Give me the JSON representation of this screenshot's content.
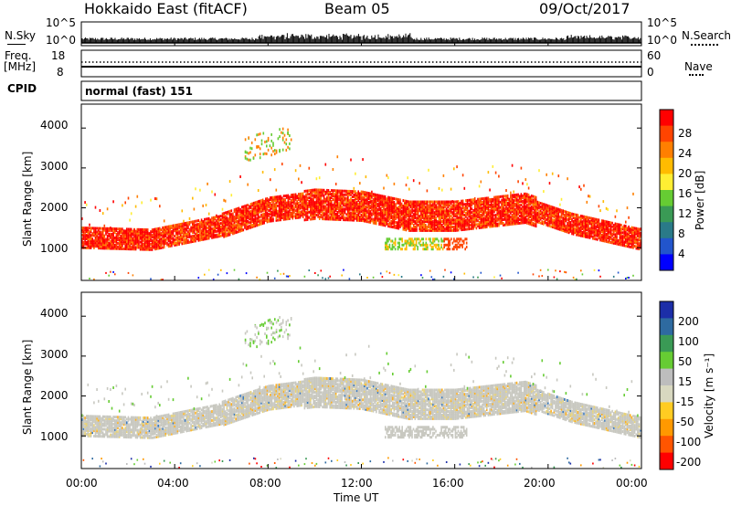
{
  "header": {
    "title": "Hokkaido East (fitACF)",
    "beam": "Beam 05",
    "date": "09/Oct/2017"
  },
  "nsky_panel": {
    "left_label": "N.Sky",
    "left_ticks": [
      "10^5",
      "10^0"
    ],
    "right_ticks": [
      "10^5",
      "10^0"
    ],
    "right_label": "N.Search"
  },
  "freq_panel": {
    "label_top": "Freq.",
    "label_unit": "[MHz]",
    "left_ticks": [
      "18",
      "8"
    ],
    "right_ticks": [
      "60",
      "0"
    ],
    "right_label": "Nave"
  },
  "cpid_panel": {
    "label": "CPID",
    "text": "normal (fast) 151"
  },
  "power_panel": {
    "ylabel": "Slant Range [km]",
    "yticks": [
      "4000",
      "3000",
      "2000",
      "1000"
    ],
    "colorbar_label": "Power [dB]",
    "colorbar_ticks": [
      "28",
      "24",
      "20",
      "16",
      "12",
      "8",
      "4"
    ],
    "colorbar_colors": [
      "#ff0000",
      "#ff4400",
      "#ff7f00",
      "#ffbb00",
      "#ffee33",
      "#66cc33",
      "#3a9a55",
      "#2a7a88",
      "#2255cc",
      "#0000ff"
    ]
  },
  "velocity_panel": {
    "ylabel": "Slant Range [km]",
    "yticks": [
      "4000",
      "3000",
      "2000",
      "1000"
    ],
    "colorbar_label": "Velocity [m s⁻¹]",
    "colorbar_ticks": [
      "200",
      "100",
      "50",
      "15",
      "-15",
      "-50",
      "-100",
      "-200"
    ],
    "colorbar_colors": [
      "#1c2ea8",
      "#2e6aa0",
      "#3a9a55",
      "#66cc33",
      "#bdbdbd",
      "#d8d8c0",
      "#ffcc22",
      "#ff9900",
      "#ff5500",
      "#ff0000"
    ]
  },
  "x_axis": {
    "ticks": [
      "00:00",
      "04:00",
      "08:00",
      "12:00",
      "16:00",
      "20:00",
      "00:00"
    ],
    "label": "Time UT"
  },
  "chart_data": {
    "type": "heatmap",
    "x_range_hours": [
      0,
      24
    ],
    "y_range_km": [
      180,
      4600
    ],
    "power_range_db": [
      0,
      30
    ],
    "velocity_range": [
      -250,
      250
    ],
    "features": [
      {
        "name": "main band lower edge",
        "description_hours": [
          0,
          24
        ],
        "range_km": [
          900,
          1400
        ]
      },
      {
        "name": "main band center",
        "hours": [
          0,
          3,
          6,
          8,
          10,
          12,
          14,
          16,
          19,
          21,
          24
        ],
        "range_km": [
          1250,
          1200,
          1550,
          1950,
          2100,
          2050,
          1800,
          1800,
          2000,
          1600,
          1200
        ]
      },
      {
        "name": "upper echo",
        "hours": [
          7,
          9
        ],
        "range_km": [
          3200,
          3900
        ]
      },
      {
        "name": "low patch",
        "hours": [
          13,
          16.5
        ],
        "range_km": [
          1000,
          1300
        ]
      }
    ]
  }
}
